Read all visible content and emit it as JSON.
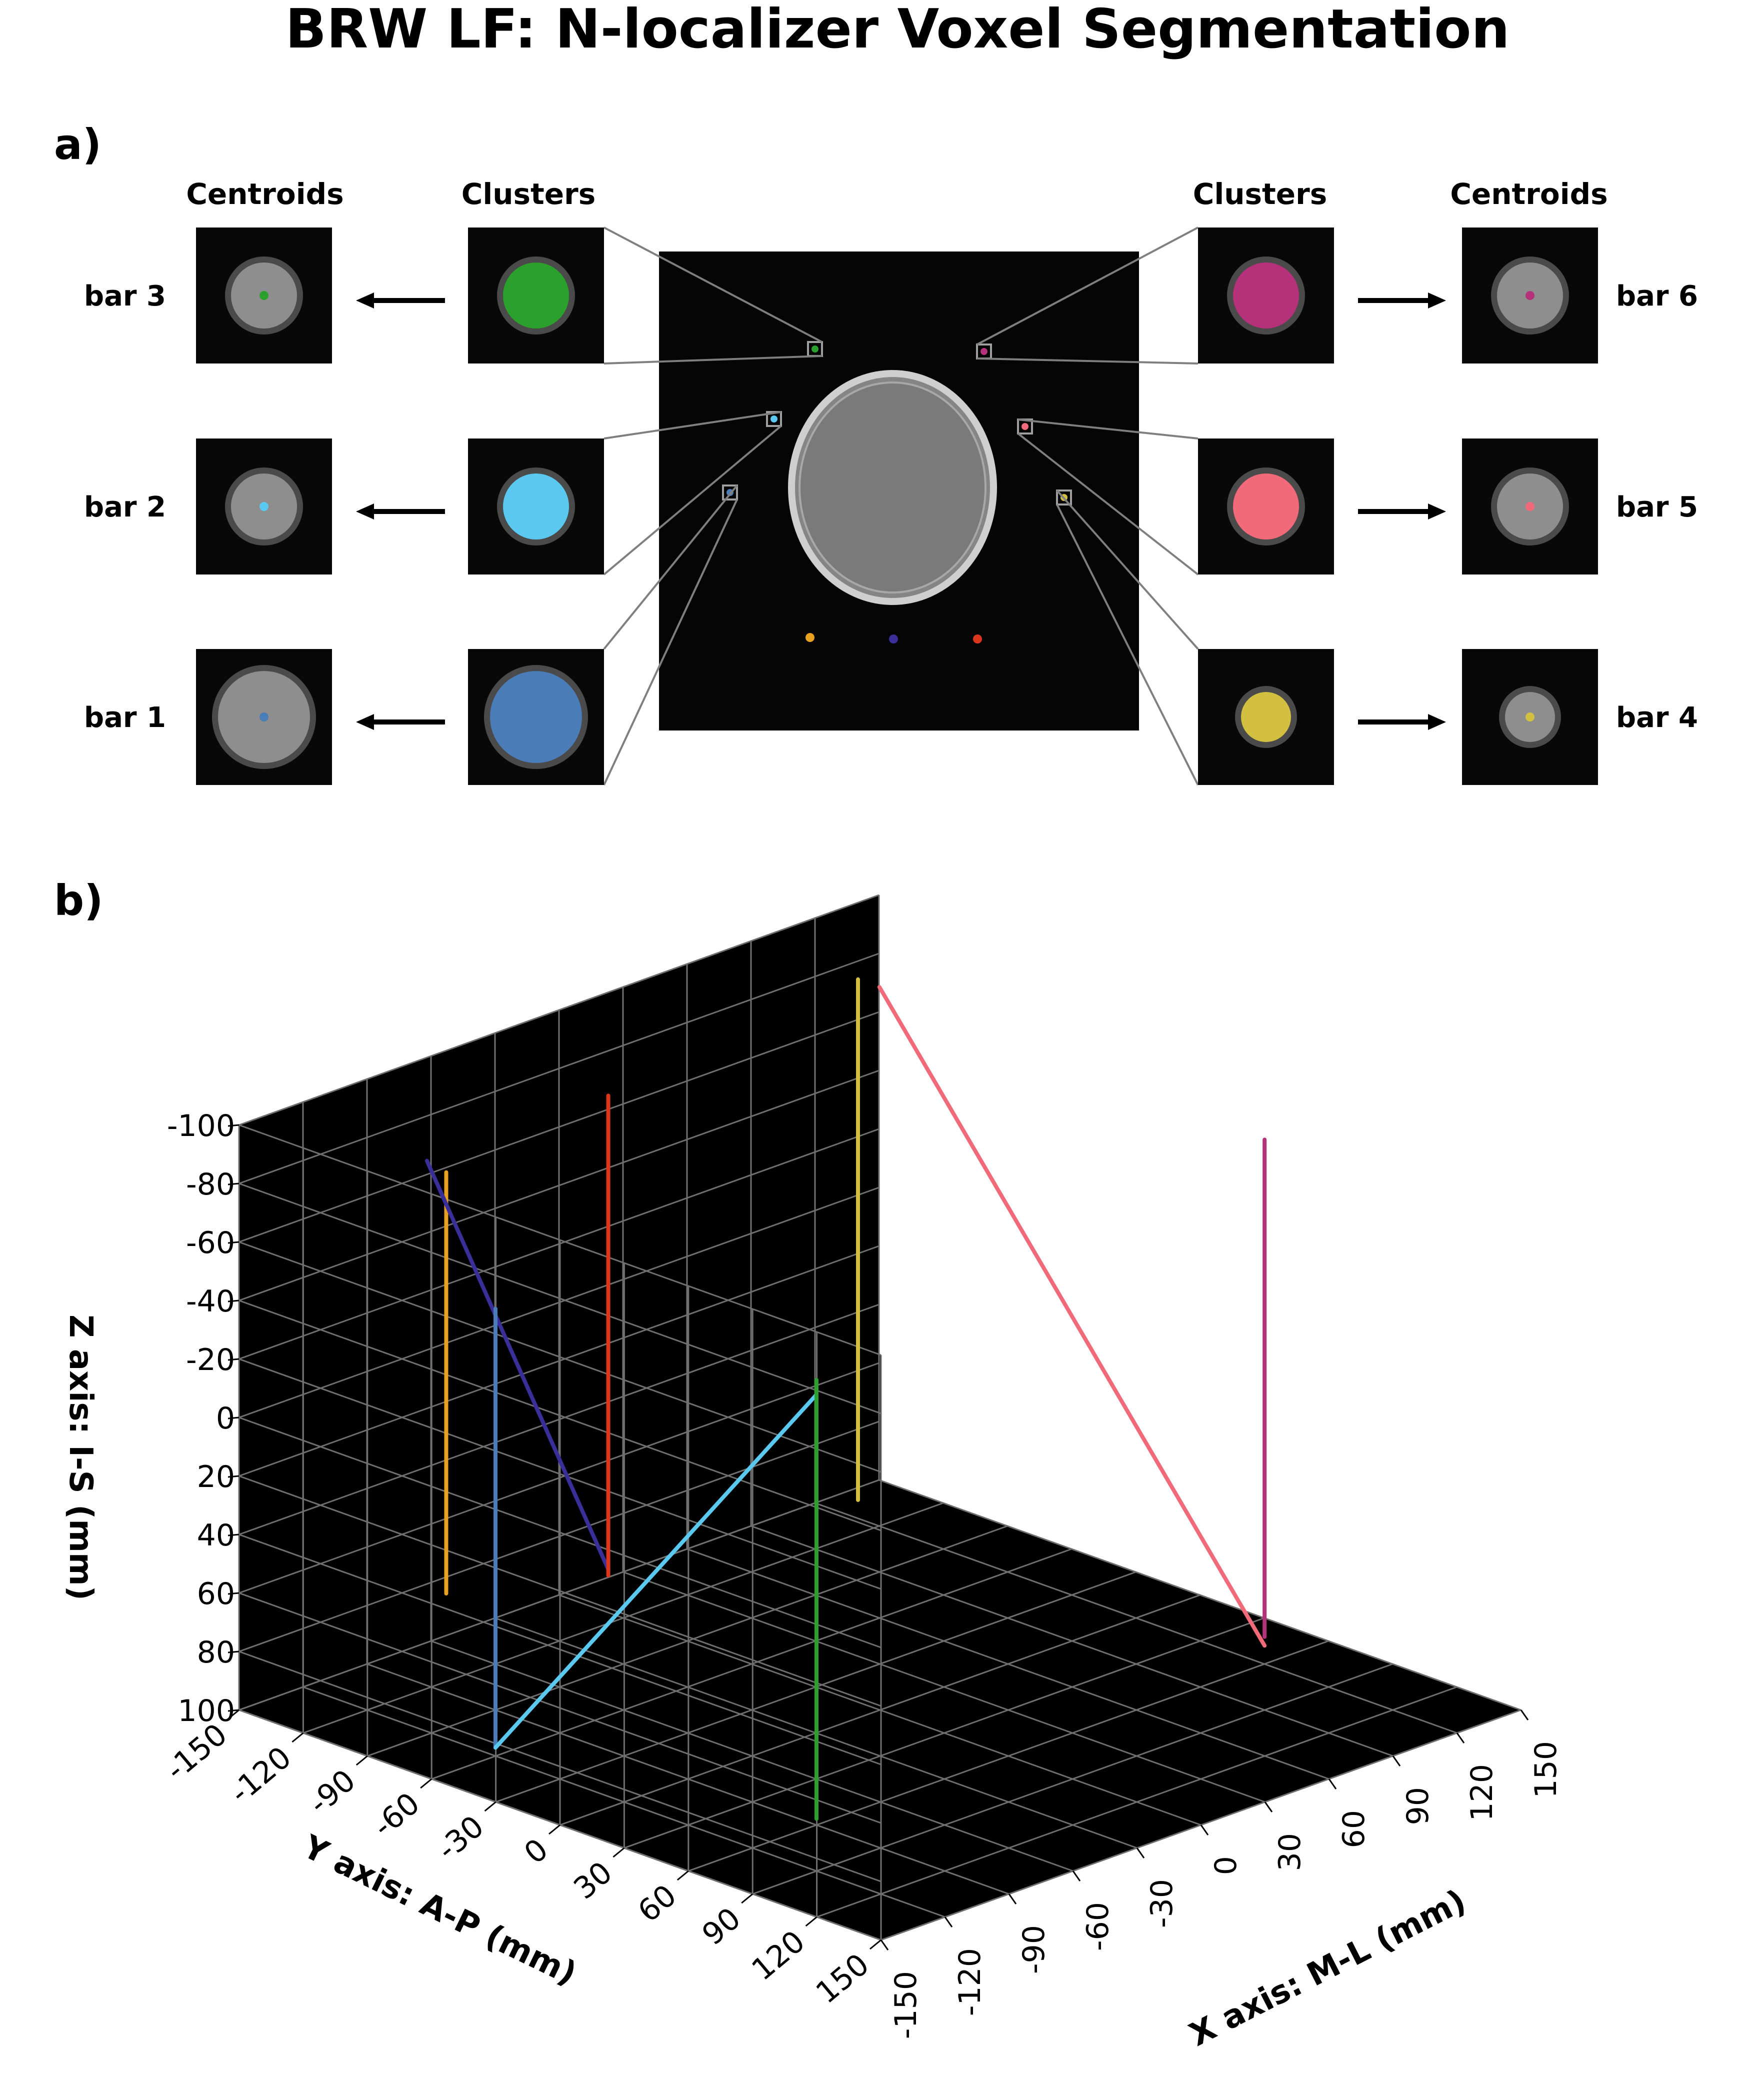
{
  "figure": {
    "title": "BRW LF: N-localizer Voxel Segmentation"
  },
  "panel_a": {
    "label": "a)",
    "headers": {
      "left_centroids": "Centroids",
      "left_clusters": "Clusters",
      "right_clusters": "Clusters",
      "right_centroids": "Centroids"
    },
    "bars": [
      {
        "name": "bar 3",
        "side": "left",
        "row": 0,
        "color": "#2ca02c",
        "blob_size": "medium"
      },
      {
        "name": "bar 2",
        "side": "left",
        "row": 1,
        "color": "#5bc8f0",
        "blob_size": "medium"
      },
      {
        "name": "bar 1",
        "side": "left",
        "row": 2,
        "color": "#4a7db8",
        "blob_size": "large"
      },
      {
        "name": "bar 6",
        "side": "right",
        "row": 0,
        "color": "#b5317a",
        "blob_size": "medium"
      },
      {
        "name": "bar 5",
        "side": "right",
        "row": 1,
        "color": "#f06a7a",
        "blob_size": "medium"
      },
      {
        "name": "bar 4",
        "side": "right",
        "row": 2,
        "color": "#d4c040",
        "blob_size": "small"
      }
    ],
    "fiducials": [
      {
        "color": "#e8a020"
      },
      {
        "color": "#3a2f99"
      },
      {
        "color": "#d9361c"
      }
    ]
  },
  "panel_b": {
    "label": "b)"
  },
  "chart_data": {
    "type": "line3d",
    "xlabel": "X axis: M-L (mm)",
    "ylabel": "Y axis: A-P (mm)",
    "zlabel": "Z axis: I-S (mm)",
    "xlim": [
      -150,
      150
    ],
    "ylim": [
      -150,
      150
    ],
    "zlim": [
      -100,
      100
    ],
    "z_inverted": true,
    "x_ticks": [
      "-150",
      "-120",
      "-90",
      "-60",
      "-30",
      "0",
      "30",
      "60",
      "90",
      "120",
      "150"
    ],
    "y_ticks": [
      "-150",
      "-120",
      "-90",
      "-60",
      "-30",
      "0",
      "30",
      "60",
      "90",
      "120",
      "150"
    ],
    "z_ticks": [
      "-100",
      "-80",
      "-60",
      "-40",
      "-20",
      "0",
      "20",
      "40",
      "60",
      "80",
      "100"
    ],
    "x_tick_values": [
      -150,
      -120,
      -90,
      -60,
      -30,
      0,
      30,
      60,
      90,
      120,
      150
    ],
    "y_tick_values": [
      -150,
      -120,
      -90,
      -60,
      -30,
      0,
      30,
      60,
      90,
      120,
      150
    ],
    "z_tick_values": [
      -100,
      -80,
      -60,
      -40,
      -20,
      0,
      20,
      40,
      60,
      80,
      100
    ],
    "grid": true,
    "background": "#000000",
    "series": [
      {
        "color": "#e8a020",
        "x": [
          -98,
          -98
        ],
        "y": [
          -105,
          -105
        ],
        "z": [
          -82,
          62
        ]
      },
      {
        "color": "#3a2f99",
        "x": [
          -95,
          -10
        ],
        "y": [
          -117,
          -117
        ],
        "z": [
          -82,
          80
        ]
      },
      {
        "color": "#d9361c",
        "x": [
          -10,
          -10
        ],
        "y": [
          -117,
          -117
        ],
        "z": [
          -82,
          82
        ]
      },
      {
        "color": "#4a7db8",
        "x": [
          -105,
          -105
        ],
        "y": [
          -75,
          -75
        ],
        "z": [
          -45,
          105
        ]
      },
      {
        "color": "#5bc8f0",
        "x": [
          -105,
          -105
        ],
        "y": [
          -75,
          75
        ],
        "z": [
          105,
          -55
        ]
      },
      {
        "color": "#2ca02c",
        "x": [
          -105,
          -105
        ],
        "y": [
          75,
          75
        ],
        "z": [
          -60,
          90
        ]
      },
      {
        "color": "#d4c040",
        "x": [
          90,
          90
        ],
        "y": [
          -100,
          -100
        ],
        "z": [
          -100,
          78
        ]
      },
      {
        "color": "#f06a7a",
        "x": [
          90,
          90
        ],
        "y": [
          -90,
          90
        ],
        "z": [
          -100,
          78
        ]
      },
      {
        "color": "#b5317a",
        "x": [
          90,
          90
        ],
        "y": [
          90,
          90
        ],
        "z": [
          -95,
          75
        ]
      }
    ]
  }
}
